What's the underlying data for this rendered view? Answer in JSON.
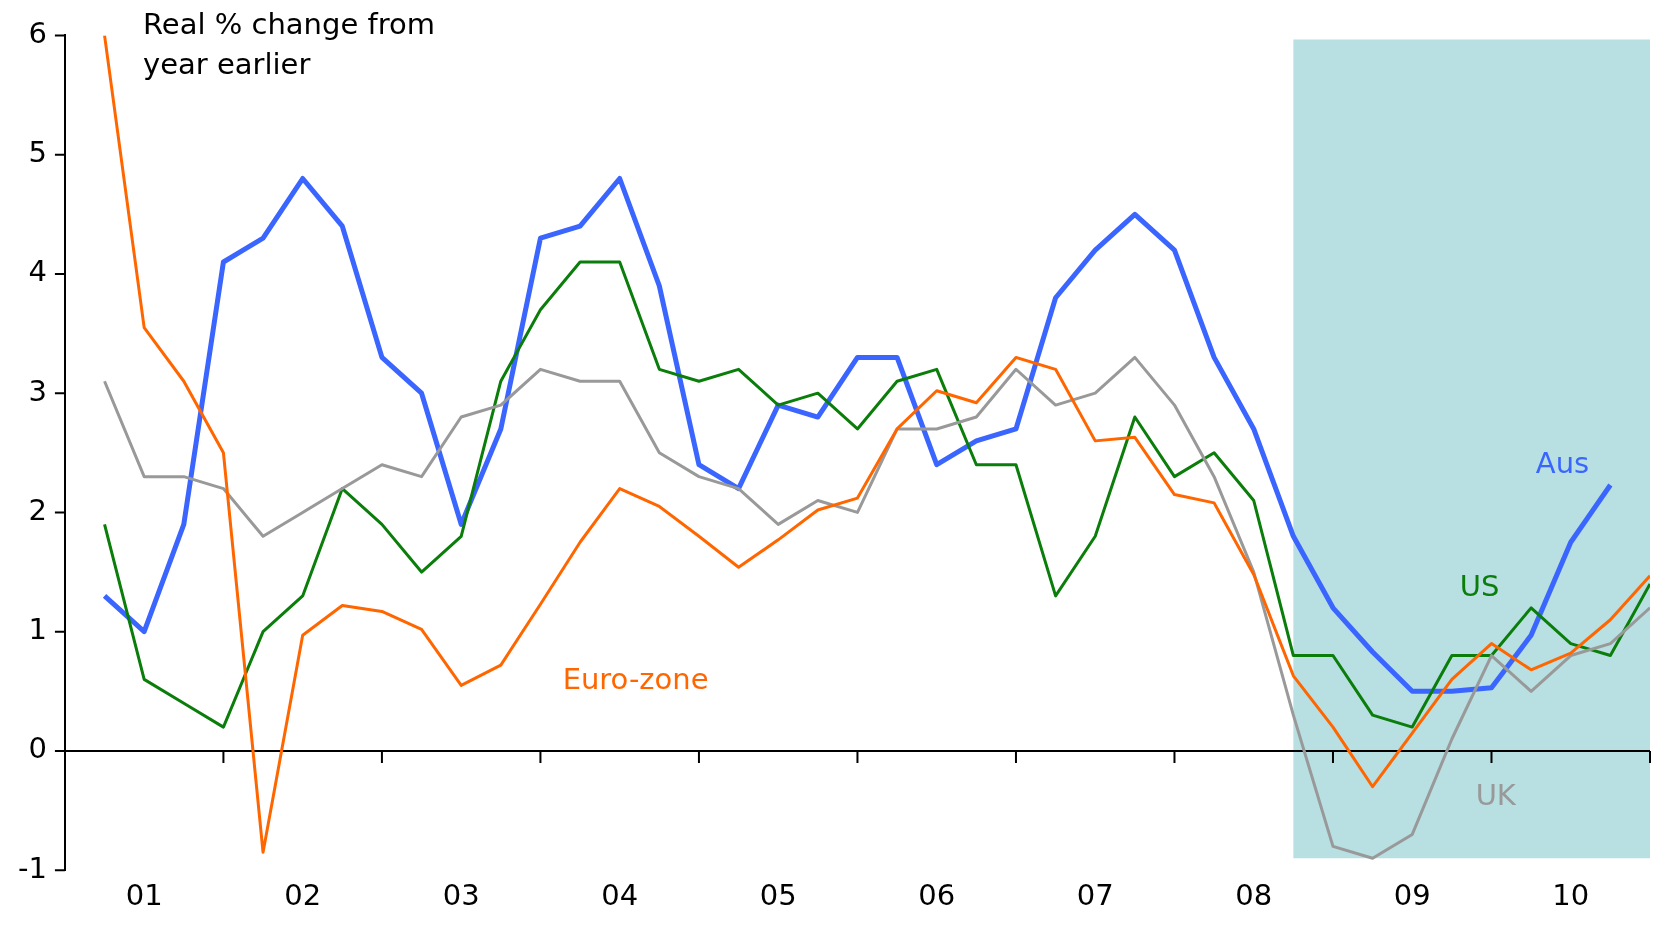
{
  "chart_data": {
    "type": "line",
    "ylabel": "Real % change from year earlier",
    "x": [
      "2001-04",
      "2001-07",
      "2001-10",
      "2002-01",
      "2002-04",
      "2002-07",
      "2002-10",
      "2003-01",
      "2003-04",
      "2003-07",
      "2003-10",
      "2004-01",
      "2004-04",
      "2004-07",
      "2004-10",
      "2005-01",
      "2005-04",
      "2005-07",
      "2005-10",
      "2006-01",
      "2006-04",
      "2006-07",
      "2006-10",
      "2007-01",
      "2007-04",
      "2007-07",
      "2007-10",
      "2008-01",
      "2008-04",
      "2008-07",
      "2008-10",
      "2009-01",
      "2009-04",
      "2009-07",
      "2009-10",
      "2010-01",
      "2010-04",
      "2010-07",
      "2010-10",
      "2011-01"
    ],
    "series": [
      {
        "name": "Euro-zone",
        "color": "#ff6600",
        "values": [
          6.0,
          3.55,
          3.1,
          2.5,
          -0.85,
          0.97,
          1.22,
          1.17,
          1.02,
          0.55,
          0.72,
          1.23,
          1.75,
          2.2,
          2.05,
          1.8,
          1.54,
          1.77,
          2.02,
          2.12,
          2.7,
          3.02,
          2.92,
          3.3,
          3.2,
          2.6,
          2.63,
          2.15,
          2.08,
          1.48,
          0.63,
          0.2,
          -0.3,
          0.15,
          0.6,
          0.9,
          0.68,
          0.82,
          1.1,
          1.47
        ]
      },
      {
        "name": "UK",
        "color": "#999999",
        "values": [
          3.1,
          2.3,
          2.3,
          2.2,
          1.8,
          2.0,
          2.2,
          2.4,
          2.3,
          2.8,
          2.9,
          3.2,
          3.1,
          3.1,
          2.5,
          2.3,
          2.2,
          1.9,
          2.1,
          2.0,
          2.7,
          2.7,
          2.8,
          3.2,
          2.9,
          3.0,
          3.3,
          2.9,
          2.3,
          1.5,
          0.3,
          -0.8,
          -0.9,
          -0.7,
          0.1,
          0.8,
          0.5,
          0.8,
          0.9,
          1.2
        ]
      },
      {
        "name": "US",
        "color": "#0a7d0a",
        "values": [
          1.9,
          0.6,
          0.4,
          0.2,
          1.0,
          1.3,
          2.2,
          1.9,
          1.5,
          1.8,
          3.1,
          3.7,
          4.1,
          4.1,
          3.2,
          3.1,
          3.2,
          2.9,
          3.0,
          2.7,
          3.1,
          3.2,
          2.4,
          2.4,
          1.3,
          1.8,
          2.8,
          2.3,
          2.5,
          2.1,
          0.8,
          0.8,
          0.3,
          0.2,
          0.8,
          0.8,
          1.2,
          0.9,
          0.8,
          1.4
        ]
      },
      {
        "name": "Aus",
        "color": "#3a66ff",
        "values": [
          1.3,
          1.0,
          1.9,
          4.1,
          4.3,
          4.8,
          4.4,
          3.3,
          3.0,
          1.9,
          2.7,
          4.3,
          4.4,
          4.8,
          3.9,
          2.4,
          2.2,
          2.9,
          2.8,
          3.3,
          3.3,
          2.4,
          2.6,
          2.7,
          3.8,
          4.2,
          4.5,
          4.2,
          3.3,
          2.7,
          1.8,
          1.2,
          0.83,
          0.5,
          0.5,
          0.53,
          0.97,
          1.75,
          2.23,
          null
        ]
      }
    ],
    "xlim": [
      "2001-01",
      "2011-01"
    ],
    "xticks": [
      {
        "value": "2001-07",
        "label": "01"
      },
      {
        "value": "2002-07",
        "label": "02"
      },
      {
        "value": "2003-07",
        "label": "03"
      },
      {
        "value": "2004-07",
        "label": "04"
      },
      {
        "value": "2005-07",
        "label": "05"
      },
      {
        "value": "2006-07",
        "label": "06"
      },
      {
        "value": "2007-07",
        "label": "07"
      },
      {
        "value": "2008-07",
        "label": "08"
      },
      {
        "value": "2009-07",
        "label": "09"
      },
      {
        "value": "2010-07",
        "label": "10"
      },
      {
        "value": "2002-01",
        "label": null
      },
      {
        "value": "2003-01",
        "label": null
      },
      {
        "value": "2004-01",
        "label": null
      },
      {
        "value": "2005-01",
        "label": null
      },
      {
        "value": "2006-01",
        "label": null
      },
      {
        "value": "2007-01",
        "label": null
      },
      {
        "value": "2008-01",
        "label": null
      },
      {
        "value": "2009-01",
        "label": null
      },
      {
        "value": "2010-01",
        "label": null
      },
      {
        "value": "2011-01",
        "label": null
      }
    ],
    "ylim": [
      -1,
      6
    ],
    "yticks": [
      -1,
      0,
      1,
      2,
      3,
      4,
      5,
      6
    ],
    "ref_lines": [
      {
        "axis": "y",
        "value": 0,
        "color": "#000000"
      }
    ],
    "bands": [
      {
        "axis": "x",
        "from": "2008-10",
        "to": "2011-01",
        "color": "#b8dfe2"
      }
    ],
    "grid": false,
    "legend": false,
    "marker": "none",
    "line_style": "solid"
  }
}
